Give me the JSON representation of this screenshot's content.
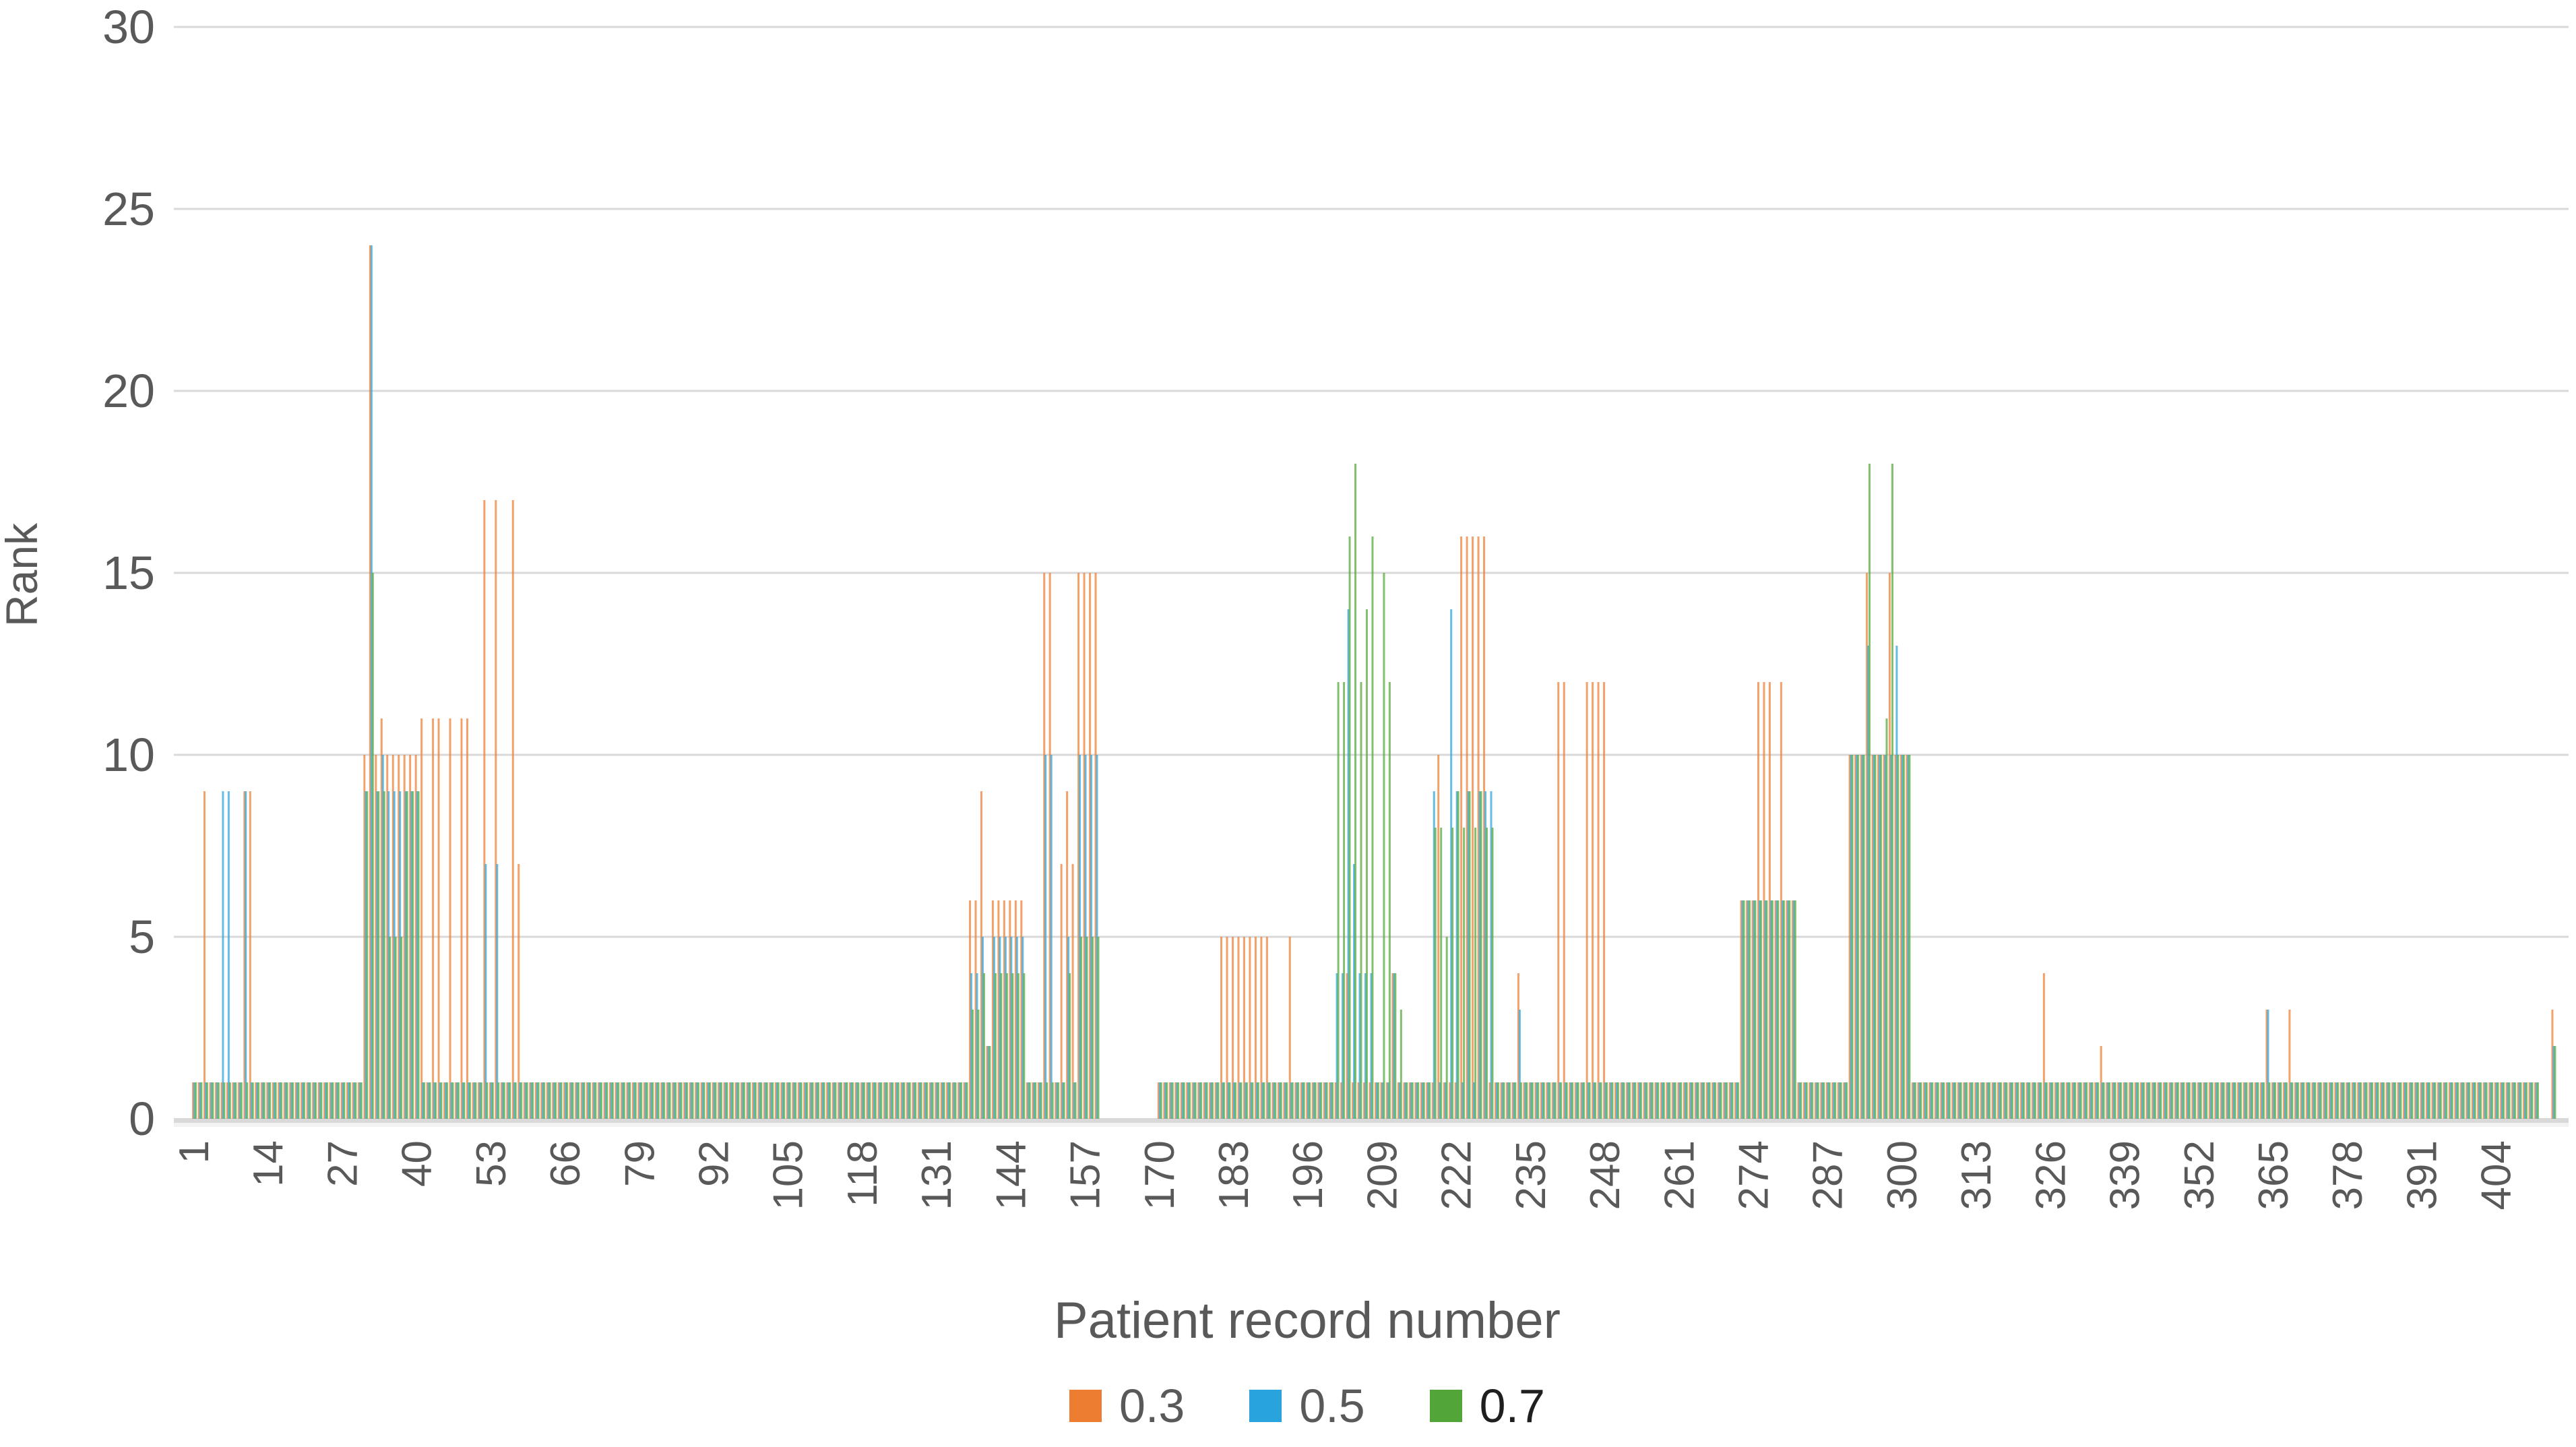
{
  "chart_data": {
    "type": "bar",
    "title": "",
    "y_axis": {
      "label": "Rank",
      "min": 0,
      "max": 30,
      "tick_step": 5,
      "ticks": [
        0,
        5,
        10,
        15,
        20,
        25,
        30
      ]
    },
    "x_axis": {
      "label": "Patient record number",
      "tick_start": 1,
      "tick_step": 13,
      "tick_labels": [
        1,
        14,
        27,
        40,
        53,
        66,
        79,
        92,
        105,
        118,
        131,
        144,
        157,
        170,
        183,
        196,
        209,
        222,
        235,
        248,
        261,
        274,
        287,
        300,
        313,
        326,
        339,
        352,
        365,
        378,
        391,
        404
      ]
    },
    "grid": "horizontal",
    "legend_position": "bottom",
    "series": [
      {
        "name": "0.3",
        "color": "#ED7D31"
      },
      {
        "name": "0.5",
        "color": "#29A3DC"
      },
      {
        "name": "0.7",
        "color": "#52A637"
      }
    ],
    "patients": {
      "count": 414,
      "series_order": [
        "0.3",
        "0.5",
        "0.7"
      ],
      "default_values": [
        1,
        1,
        1
      ],
      "zero_ranges": [
        [
          160,
          169
        ],
        [
          412,
          413
        ]
      ],
      "values_by_patient": {
        "3": [
          9,
          1,
          1
        ],
        "6": [
          1,
          9,
          1
        ],
        "7": [
          1,
          9,
          1
        ],
        "10": [
          9,
          9,
          1
        ],
        "11": [
          9,
          1,
          1
        ],
        "31": [
          10,
          9,
          9
        ],
        "32": [
          24,
          24,
          15
        ],
        "33": [
          10,
          9,
          9
        ],
        "34": [
          11,
          10,
          9
        ],
        "35": [
          10,
          9,
          5
        ],
        "36": [
          10,
          9,
          5
        ],
        "37": [
          10,
          9,
          5
        ],
        "38": [
          10,
          9,
          9
        ],
        "39": [
          10,
          9,
          9
        ],
        "40": [
          10,
          9,
          9
        ],
        "41": [
          11,
          1,
          1
        ],
        "43": [
          11,
          1,
          1
        ],
        "44": [
          11,
          1,
          1
        ],
        "46": [
          11,
          1,
          1
        ],
        "48": [
          11,
          1,
          1
        ],
        "49": [
          11,
          1,
          1
        ],
        "52": [
          17,
          7,
          1
        ],
        "54": [
          17,
          7,
          1
        ],
        "57": [
          17,
          1,
          1
        ],
        "58": [
          7,
          1,
          1
        ],
        "137": [
          6,
          4,
          3
        ],
        "138": [
          6,
          4,
          3
        ],
        "139": [
          9,
          5,
          4
        ],
        "140": [
          2,
          2,
          2
        ],
        "141": [
          6,
          5,
          4
        ],
        "142": [
          6,
          5,
          4
        ],
        "143": [
          6,
          5,
          4
        ],
        "144": [
          6,
          5,
          4
        ],
        "145": [
          6,
          5,
          4
        ],
        "146": [
          6,
          5,
          4
        ],
        "150": [
          15,
          10,
          1
        ],
        "151": [
          15,
          10,
          1
        ],
        "153": [
          7,
          1,
          1
        ],
        "154": [
          9,
          5,
          4
        ],
        "155": [
          7,
          1,
          1
        ],
        "156": [
          15,
          10,
          5
        ],
        "157": [
          15,
          10,
          5
        ],
        "158": [
          15,
          10,
          5
        ],
        "159": [
          15,
          10,
          5
        ],
        "181": [
          5,
          1,
          1
        ],
        "182": [
          5,
          1,
          1
        ],
        "183": [
          5,
          1,
          1
        ],
        "184": [
          5,
          1,
          1
        ],
        "185": [
          5,
          1,
          1
        ],
        "186": [
          5,
          1,
          1
        ],
        "187": [
          5,
          1,
          1
        ],
        "188": [
          5,
          1,
          1
        ],
        "189": [
          5,
          1,
          1
        ],
        "193": [
          5,
          1,
          1
        ],
        "201": [
          1,
          4,
          12
        ],
        "202": [
          1,
          4,
          12
        ],
        "203": [
          4,
          14,
          16
        ],
        "204": [
          1,
          7,
          18
        ],
        "205": [
          1,
          4,
          12
        ],
        "206": [
          1,
          4,
          14
        ],
        "207": [
          1,
          4,
          16
        ],
        "209": [
          1,
          1,
          15
        ],
        "210": [
          1,
          1,
          12
        ],
        "211": [
          4,
          4,
          4
        ],
        "212": [
          1,
          1,
          3
        ],
        "218": [
          1,
          9,
          8
        ],
        "219": [
          10,
          1,
          8
        ],
        "220": [
          1,
          1,
          5
        ],
        "221": [
          1,
          14,
          8
        ],
        "222": [
          1,
          9,
          9
        ],
        "223": [
          16,
          1,
          8
        ],
        "224": [
          16,
          9,
          9
        ],
        "225": [
          16,
          1,
          8
        ],
        "226": [
          16,
          9,
          9
        ],
        "227": [
          16,
          9,
          8
        ],
        "228": [
          1,
          9,
          8
        ],
        "233": [
          4,
          3,
          1
        ],
        "240": [
          12,
          1,
          1
        ],
        "241": [
          12,
          1,
          1
        ],
        "245": [
          12,
          1,
          1
        ],
        "246": [
          12,
          1,
          1
        ],
        "247": [
          12,
          1,
          1
        ],
        "248": [
          12,
          1,
          1
        ],
        "272": [
          6,
          6,
          6
        ],
        "273": [
          6,
          6,
          6
        ],
        "274": [
          6,
          6,
          6
        ],
        "275": [
          12,
          6,
          6
        ],
        "276": [
          12,
          6,
          6
        ],
        "277": [
          12,
          6,
          6
        ],
        "278": [
          6,
          6,
          6
        ],
        "279": [
          12,
          6,
          6
        ],
        "280": [
          6,
          6,
          6
        ],
        "281": [
          6,
          6,
          6
        ],
        "291": [
          10,
          10,
          10
        ],
        "292": [
          10,
          10,
          10
        ],
        "293": [
          10,
          10,
          10
        ],
        "294": [
          15,
          13,
          18
        ],
        "295": [
          10,
          10,
          10
        ],
        "296": [
          10,
          10,
          10
        ],
        "297": [
          10,
          10,
          11
        ],
        "298": [
          15,
          10,
          18
        ],
        "299": [
          10,
          13,
          10
        ],
        "300": [
          10,
          10,
          10
        ],
        "301": [
          10,
          10,
          10
        ],
        "325": [
          4,
          1,
          1
        ],
        "335": [
          2,
          1,
          1
        ],
        "364": [
          3,
          3,
          1
        ],
        "368": [
          3,
          1,
          1
        ],
        "414": [
          3,
          2,
          2
        ]
      }
    }
  }
}
